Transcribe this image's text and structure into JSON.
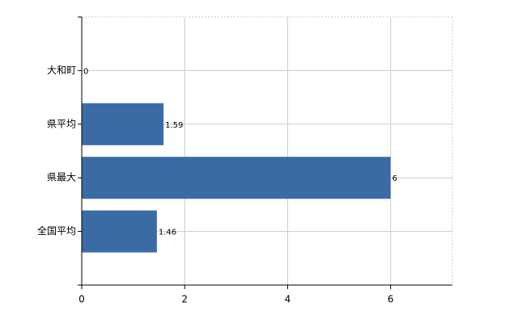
{
  "chart_data": {
    "type": "bar",
    "orientation": "horizontal",
    "categories": [
      "大和町",
      "県平均",
      "県最大",
      "全国平均"
    ],
    "values": [
      0,
      1.59,
      6,
      1.46
    ],
    "color": "#3a6ba5",
    "xlim": [
      0,
      7.2
    ],
    "xticks": [
      0,
      2,
      4,
      6
    ],
    "grid": true
  }
}
